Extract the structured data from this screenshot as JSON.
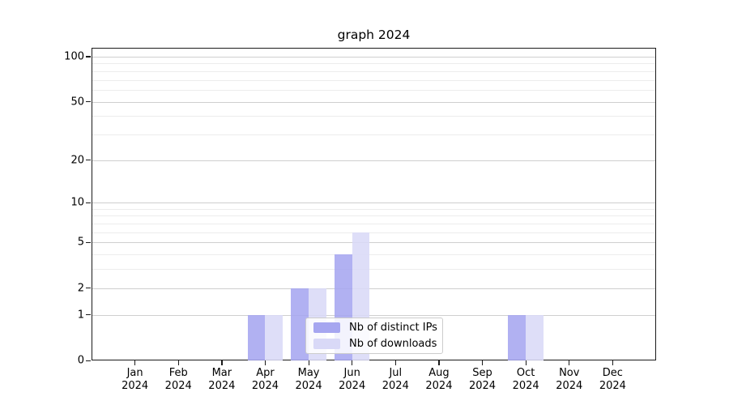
{
  "title": "graph 2024",
  "colors": {
    "bar_ips": "#a6a6f0",
    "bar_downloads": "#d9d9f7",
    "grid_major": "#cfcfcf",
    "grid_minor": "#ececec",
    "spine": "#1a1a1a",
    "legend_border": "#cccccc"
  },
  "chart_data": {
    "type": "bar",
    "title": "graph 2024",
    "categories": [
      "Jan",
      "Feb",
      "Mar",
      "Apr",
      "May",
      "Jun",
      "Jul",
      "Aug",
      "Sep",
      "Oct",
      "Nov",
      "Dec"
    ],
    "year": "2024",
    "series": [
      {
        "name": "Nb of distinct IPs",
        "color": "#a6a6f0",
        "values": [
          0,
          0,
          0,
          1,
          2,
          4,
          0,
          0,
          0,
          1,
          0,
          0
        ]
      },
      {
        "name": "Nb of downloads",
        "color": "#d9d9f7",
        "values": [
          0,
          0,
          0,
          1,
          2,
          6,
          0,
          0,
          0,
          1,
          0,
          0
        ]
      }
    ],
    "xlabel": "",
    "ylabel": "",
    "y_axis": {
      "scale": "log1p",
      "major_ticks": [
        0,
        1,
        2,
        5,
        10,
        20,
        50,
        100
      ],
      "minor_ticks": [
        3,
        4,
        6,
        7,
        8,
        9,
        30,
        40,
        60,
        70,
        80,
        90
      ],
      "ylim": [
        0,
        110
      ]
    },
    "grid": true,
    "legend_position": "bottom-center"
  }
}
